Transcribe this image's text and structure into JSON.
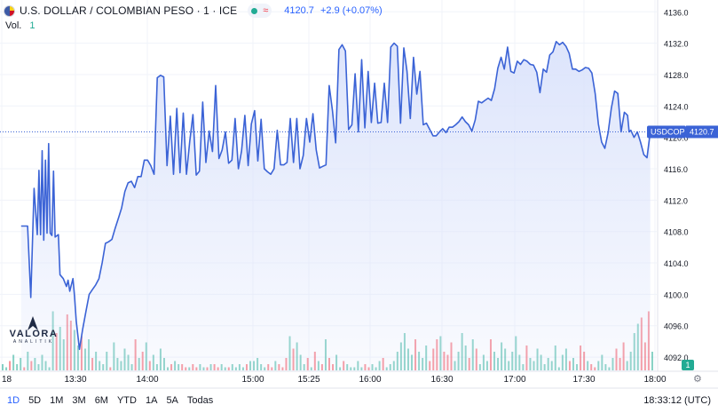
{
  "header": {
    "symbol_title": "U.S. DOLLAR / COLOMBIAN PESO · 1 · ICE",
    "status_icon": "market-open-dot",
    "approx_icon": "≈",
    "last_price": "4120.7",
    "change": "+2.9 (+0.07%)"
  },
  "volume_legend": {
    "label": "Vol.",
    "value": "1"
  },
  "price_tag": {
    "symbol": "USDCOP",
    "value": "4120.7"
  },
  "volume_badge": "1",
  "branding": {
    "name": "VALORA",
    "sub": "ANALITIK"
  },
  "timeframes": [
    "1D",
    "5D",
    "1M",
    "3M",
    "6M",
    "YTD",
    "1A",
    "5A",
    "Todas"
  ],
  "active_timeframe": "1D",
  "clock": "18:33:12 (UTC)",
  "colors": {
    "line": "#3b63d6",
    "area_top": "#dbe3fb",
    "vol_up": "#22ab94",
    "vol_down": "#f23645",
    "price_tag_bg": "#3b63d6"
  },
  "chart_data": {
    "type": "area",
    "title": "U.S. DOLLAR / COLOMBIAN PESO · 1 · ICE",
    "y_ticks": [
      4136.0,
      4132.0,
      4128.0,
      4124.0,
      4120.0,
      4116.0,
      4112.0,
      4108.0,
      4104.0,
      4100.0,
      4096.0,
      4092.0
    ],
    "ylim": [
      4090.2,
      4137.5
    ],
    "x_ticks": [
      "18",
      "13:30",
      "14:00",
      "15:00",
      "15:25",
      "16:00",
      "16:30",
      "17:00",
      "17:30",
      "18:00"
    ],
    "last_value": 4120.7,
    "grid": true,
    "series": [
      {
        "name": "USDCOP",
        "points": [
          [
            "12:18",
            4108.7
          ],
          [
            "12:22",
            4108.7
          ],
          [
            "12:24",
            4099.6
          ],
          [
            "12:26",
            4113.5
          ],
          [
            "12:28",
            4107.6
          ],
          [
            "12:29",
            4115.8
          ],
          [
            "12:30",
            4107.6
          ],
          [
            "12:31",
            4118.3
          ],
          [
            "12:32",
            4106.9
          ],
          [
            "12:33",
            4117.1
          ],
          [
            "12:34",
            4107.8
          ],
          [
            "12:35",
            4119.2
          ],
          [
            "12:36",
            4107.8
          ],
          [
            "12:37",
            4107.5
          ],
          [
            "12:38",
            4115.7
          ],
          [
            "12:39",
            4107.3
          ],
          [
            "12:41",
            4107.6
          ],
          [
            "12:42",
            4102.5
          ],
          [
            "12:44",
            4102.0
          ],
          [
            "12:46",
            4101.0
          ],
          [
            "12:47",
            4101.8
          ],
          [
            "12:48",
            4100.4
          ],
          [
            "12:50",
            4102.0
          ],
          [
            "12:51",
            4099.7
          ],
          [
            "12:52",
            4096.6
          ],
          [
            "12:54",
            4093.0
          ],
          [
            "12:56",
            4095.6
          ],
          [
            "12:58",
            4097.8
          ],
          [
            "13:00",
            4100.0
          ],
          [
            "13:02",
            4100.6
          ],
          [
            "13:04",
            4101.2
          ],
          [
            "13:06",
            4102.0
          ],
          [
            "13:08",
            4104.0
          ],
          [
            "13:10",
            4106.5
          ],
          [
            "13:12",
            4106.7
          ],
          [
            "13:14",
            4107.0
          ],
          [
            "13:16",
            4108.4
          ],
          [
            "13:18",
            4109.7
          ],
          [
            "13:20",
            4111.0
          ],
          [
            "13:22",
            4113.1
          ],
          [
            "13:24",
            4114.2
          ],
          [
            "13:26",
            4114.4
          ],
          [
            "13:28",
            4113.6
          ],
          [
            "13:30",
            4115.0
          ],
          [
            "13:32",
            4115.0
          ],
          [
            "13:34",
            4117.1
          ],
          [
            "13:36",
            4117.1
          ],
          [
            "13:38",
            4116.4
          ],
          [
            "13:40",
            4115.3
          ],
          [
            "13:42",
            4127.6
          ],
          [
            "13:44",
            4127.9
          ],
          [
            "13:46",
            4127.7
          ],
          [
            "13:48",
            4116.4
          ],
          [
            "13:50",
            4122.7
          ],
          [
            "13:52",
            4115.3
          ],
          [
            "13:54",
            4123.7
          ],
          [
            "13:56",
            4115.5
          ],
          [
            "13:58",
            4123.1
          ],
          [
            "14:00",
            4115.3
          ],
          [
            "14:02",
            4119.5
          ],
          [
            "14:04",
            4122.9
          ],
          [
            "14:06",
            4115.2
          ],
          [
            "14:08",
            4115.7
          ],
          [
            "14:10",
            4124.5
          ],
          [
            "14:12",
            4116.8
          ],
          [
            "14:14",
            4120.8
          ],
          [
            "14:16",
            4118.2
          ],
          [
            "14:18",
            4126.6
          ],
          [
            "14:20",
            4117.3
          ],
          [
            "14:22",
            4118.4
          ],
          [
            "14:24",
            4120.7
          ],
          [
            "14:26",
            4116.7
          ],
          [
            "14:28",
            4117.1
          ],
          [
            "14:30",
            4122.4
          ],
          [
            "14:32",
            4116.0
          ],
          [
            "14:34",
            4118.3
          ],
          [
            "14:36",
            4122.8
          ],
          [
            "14:38",
            4116.4
          ],
          [
            "14:40",
            4121.7
          ],
          [
            "14:42",
            4123.4
          ],
          [
            "14:44",
            4117.0
          ],
          [
            "14:46",
            4122.3
          ],
          [
            "14:48",
            4116.0
          ],
          [
            "14:50",
            4115.6
          ],
          [
            "14:52",
            4115.3
          ],
          [
            "14:54",
            4116.0
          ],
          [
            "14:56",
            4120.9
          ],
          [
            "14:58",
            4116.5
          ],
          [
            "15:00",
            4116.5
          ],
          [
            "15:02",
            4116.8
          ],
          [
            "15:04",
            4122.4
          ],
          [
            "15:06",
            4116.8
          ],
          [
            "15:08",
            4122.4
          ],
          [
            "15:10",
            4116.0
          ],
          [
            "15:12",
            4117.7
          ],
          [
            "15:14",
            4122.4
          ],
          [
            "15:16",
            4119.4
          ],
          [
            "15:18",
            4123.0
          ],
          [
            "15:20",
            4118.4
          ],
          [
            "15:22",
            4116.1
          ],
          [
            "15:24",
            4116.3
          ],
          [
            "15:26",
            4116.5
          ],
          [
            "15:28",
            4126.6
          ],
          [
            "15:30",
            4123.4
          ],
          [
            "15:32",
            4119.3
          ],
          [
            "15:34",
            4131.2
          ],
          [
            "15:36",
            4131.8
          ],
          [
            "15:38",
            4131.0
          ],
          [
            "15:40",
            4121.0
          ],
          [
            "15:42",
            4121.6
          ],
          [
            "15:44",
            4128.1
          ],
          [
            "15:46",
            4120.7
          ],
          [
            "15:48",
            4129.9
          ],
          [
            "15:50",
            4121.2
          ],
          [
            "15:52",
            4128.4
          ],
          [
            "15:54",
            4121.9
          ],
          [
            "15:56",
            4126.9
          ],
          [
            "15:58",
            4121.8
          ],
          [
            "16:00",
            4121.9
          ],
          [
            "16:02",
            4126.9
          ],
          [
            "16:04",
            4121.9
          ],
          [
            "16:06",
            4131.5
          ],
          [
            "16:08",
            4132.0
          ],
          [
            "16:10",
            4131.6
          ],
          [
            "16:12",
            4121.8
          ],
          [
            "16:14",
            4131.4
          ],
          [
            "16:16",
            4128.4
          ],
          [
            "16:18",
            4122.4
          ],
          [
            "16:20",
            4130.2
          ],
          [
            "16:22",
            4125.5
          ],
          [
            "16:24",
            4128.4
          ],
          [
            "16:26",
            4121.6
          ],
          [
            "16:28",
            4121.8
          ],
          [
            "16:30",
            4121.0
          ],
          [
            "16:32",
            4120.2
          ],
          [
            "16:34",
            4120.2
          ],
          [
            "16:36",
            4120.7
          ],
          [
            "16:38",
            4121.1
          ],
          [
            "16:40",
            4120.6
          ],
          [
            "16:42",
            4121.3
          ],
          [
            "16:44",
            4121.3
          ],
          [
            "16:46",
            4121.6
          ],
          [
            "16:48",
            4122.0
          ],
          [
            "16:50",
            4122.6
          ],
          [
            "16:52",
            4122.0
          ],
          [
            "16:54",
            4121.6
          ],
          [
            "16:56",
            4120.8
          ],
          [
            "16:58",
            4122.2
          ],
          [
            "17:00",
            4124.6
          ],
          [
            "17:02",
            4124.4
          ],
          [
            "17:04",
            4124.7
          ],
          [
            "17:06",
            4125.0
          ],
          [
            "17:08",
            4124.7
          ],
          [
            "17:10",
            4126.2
          ],
          [
            "17:12",
            4128.8
          ],
          [
            "17:14",
            4130.2
          ],
          [
            "17:16",
            4128.7
          ],
          [
            "17:18",
            4131.5
          ],
          [
            "17:20",
            4128.4
          ],
          [
            "17:22",
            4128.2
          ],
          [
            "17:24",
            4129.7
          ],
          [
            "17:26",
            4129.3
          ],
          [
            "17:28",
            4129.9
          ],
          [
            "17:30",
            4129.7
          ],
          [
            "17:32",
            4129.3
          ],
          [
            "17:34",
            4129.2
          ],
          [
            "17:36",
            4128.3
          ],
          [
            "17:38",
            4125.7
          ],
          [
            "17:40",
            4128.7
          ],
          [
            "17:42",
            4128.3
          ],
          [
            "17:44",
            4130.5
          ],
          [
            "17:46",
            4130.9
          ],
          [
            "17:48",
            4132.2
          ],
          [
            "17:50",
            4131.8
          ],
          [
            "17:52",
            4132.1
          ],
          [
            "17:54",
            4131.6
          ],
          [
            "17:56",
            4130.7
          ],
          [
            "17:58",
            4128.7
          ],
          [
            "18:00",
            4128.7
          ],
          [
            "18:02",
            4128.4
          ],
          [
            "18:04",
            4128.6
          ],
          [
            "18:06",
            4128.9
          ],
          [
            "18:08",
            4128.8
          ],
          [
            "18:10",
            4128.2
          ],
          [
            "18:12",
            4125.6
          ],
          [
            "18:14",
            4121.7
          ],
          [
            "18:16",
            4119.4
          ],
          [
            "18:18",
            4118.6
          ],
          [
            "18:20",
            4120.6
          ],
          [
            "18:22",
            4123.7
          ],
          [
            "18:24",
            4125.9
          ],
          [
            "18:26",
            4125.6
          ],
          [
            "18:28",
            4120.7
          ],
          [
            "18:30",
            4123.2
          ],
          [
            "18:31",
            4123.0
          ],
          [
            "18:32",
            4122.8
          ],
          [
            "18:33",
            4120.7
          ],
          [
            "18:34",
            4120.9
          ],
          [
            "18:36",
            4120.0
          ],
          [
            "18:38",
            4120.7
          ],
          [
            "18:40",
            4119.4
          ],
          [
            "18:42",
            4117.8
          ],
          [
            "18:44",
            4117.4
          ],
          [
            "18:46",
            4120.7
          ]
        ]
      }
    ],
    "volume": {
      "max": 1,
      "bars": [
        0.1,
        0.05,
        0.15,
        0.25,
        0.1,
        0.2,
        0.05,
        0.3,
        0.15,
        0.2,
        0.1,
        0.25,
        0.15,
        0.05,
        0.95,
        0.6,
        0.7,
        0.5,
        0.9,
        0.8,
        0.65,
        0.4,
        0.55,
        0.35,
        0.5,
        0.2,
        0.3,
        0.15,
        0.1,
        0.3,
        0.05,
        0.45,
        0.2,
        0.15,
        0.35,
        0.25,
        0.1,
        0.5,
        0.2,
        0.3,
        0.45,
        0.15,
        0.25,
        0.1,
        0.35,
        0.2,
        0.05,
        0.1,
        0.15,
        0.1,
        0.1,
        0.05,
        0.05,
        0.1,
        0.05,
        0.1,
        0.05,
        0.05,
        0.1,
        0.1,
        0.05,
        0.1,
        0.05,
        0.05,
        0.1,
        0.05,
        0.1,
        0.05,
        0.1,
        0.15,
        0.15,
        0.2,
        0.1,
        0.05,
        0.1,
        0.05,
        0.15,
        0.1,
        0.05,
        0.2,
        0.55,
        0.35,
        0.45,
        0.25,
        0.1,
        0.2,
        0.05,
        0.3,
        0.15,
        0.1,
        0.5,
        0.2,
        0.1,
        0.25,
        0.05,
        0.15,
        0.1,
        0.05,
        0.05,
        0.15,
        0.05,
        0.1,
        0.05,
        0.1,
        0.05,
        0.15,
        0.2,
        0.05,
        0.1,
        0.15,
        0.3,
        0.45,
        0.6,
        0.35,
        0.25,
        0.5,
        0.3,
        0.2,
        0.4,
        0.15,
        0.35,
        0.5,
        0.55,
        0.3,
        0.25,
        0.45,
        0.15,
        0.3,
        0.6,
        0.4,
        0.2,
        0.5,
        0.35,
        0.1,
        0.25,
        0.15,
        0.5,
        0.3,
        0.2,
        0.45,
        0.35,
        0.15,
        0.3,
        0.55,
        0.25,
        0.1,
        0.4,
        0.2,
        0.15,
        0.35,
        0.25,
        0.1,
        0.2,
        0.15,
        0.4,
        0.05,
        0.25,
        0.35,
        0.15,
        0.2,
        0.1,
        0.4,
        0.3,
        0.15,
        0.1,
        0.05,
        0.15,
        0.25,
        0.1,
        0.05,
        0.2,
        0.35,
        0.2,
        0.45,
        0.15,
        0.3,
        0.6,
        0.75,
        0.85,
        0.45,
        0.95,
        0.3
      ]
    }
  }
}
